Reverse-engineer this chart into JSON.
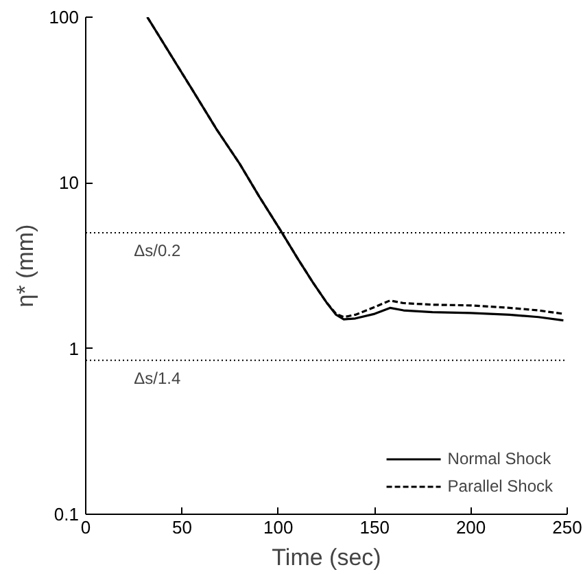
{
  "chart_data": {
    "type": "line",
    "xlabel": "Time (sec)",
    "ylabel": "η* (mm)",
    "log": "y",
    "xlim": [
      0,
      250
    ],
    "xticks": [
      0,
      50,
      100,
      150,
      200,
      250
    ],
    "ylim": [
      0.1,
      100
    ],
    "yticks": [
      0.1,
      1,
      10,
      100
    ],
    "grid": false,
    "legend": "bottom right",
    "series": [
      {
        "name": "Normal Shock",
        "color": "#000000",
        "line_style": "solid",
        "x": [
          32,
          45,
          55,
          68,
          80,
          90,
          101,
          110,
          118,
          125,
          130,
          134,
          140,
          150,
          158,
          165,
          180,
          200,
          220,
          235,
          248
        ],
        "values": [
          100,
          57,
          37,
          21,
          13,
          8.3,
          5.2,
          3.5,
          2.5,
          1.9,
          1.6,
          1.5,
          1.52,
          1.62,
          1.76,
          1.7,
          1.66,
          1.64,
          1.6,
          1.55,
          1.48
        ]
      },
      {
        "name": "Parallel Shock",
        "color": "#000000",
        "line_style": "dashed",
        "x": [
          32,
          45,
          55,
          68,
          80,
          90,
          101,
          110,
          118,
          125,
          130,
          134,
          140,
          150,
          158,
          165,
          180,
          200,
          220,
          235,
          248
        ],
        "values": [
          100,
          57,
          37,
          21,
          13,
          8.3,
          5.2,
          3.5,
          2.5,
          1.9,
          1.62,
          1.55,
          1.6,
          1.78,
          1.95,
          1.88,
          1.84,
          1.82,
          1.76,
          1.7,
          1.62
        ]
      }
    ],
    "ref_lines": [
      {
        "axis": "y",
        "value": 5,
        "label": "Δs/0.2",
        "color": "#000000",
        "line_style": "dotted"
      },
      {
        "axis": "y",
        "value": 0.85,
        "label": "Δs/1.4",
        "color": "#000000",
        "line_style": "dotted"
      }
    ]
  }
}
